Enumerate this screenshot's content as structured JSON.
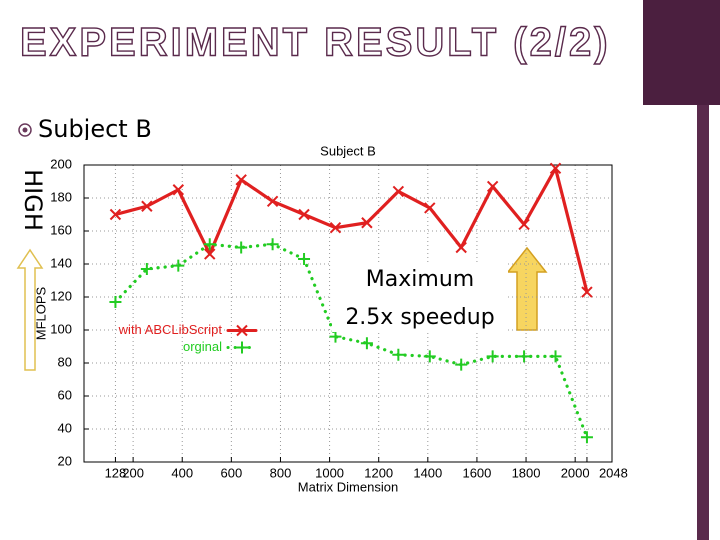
{
  "slide": {
    "title": "EXPERIMENT RESULT (2/2)",
    "bullet": "Subject B",
    "side_label": "HIGH",
    "annotation": [
      "Maximum",
      "2.5x speedup"
    ]
  },
  "chart_data": {
    "type": "line",
    "title": "Subject B",
    "x_label": "Matrix Dimension",
    "y_label": "MFLOPS",
    "x": [
      128,
      256,
      384,
      512,
      640,
      768,
      896,
      1024,
      1152,
      1280,
      1408,
      1536,
      1664,
      1792,
      1920,
      2048
    ],
    "series": [
      {
        "name": "with ABCLibScript",
        "color": "#e02020",
        "marker": "x",
        "style": "solid",
        "values": [
          170,
          175,
          185,
          146,
          191,
          178,
          170,
          162,
          165,
          184,
          174,
          150,
          187,
          164,
          198,
          123
        ]
      },
      {
        "name": "orginal",
        "color": "#22cc22",
        "marker": "+",
        "style": "dotted",
        "values": [
          117,
          137,
          139,
          152,
          150,
          152,
          143,
          96,
          92,
          85,
          84,
          79,
          84,
          84,
          84,
          35
        ]
      }
    ],
    "xlim": [
      0,
      2150
    ],
    "xticks": [
      128,
      200,
      400,
      600,
      800,
      1000,
      1200,
      1400,
      1600,
      1800,
      2000,
      2048
    ],
    "ylim": [
      20,
      200
    ],
    "yticks": [
      20,
      40,
      60,
      80,
      100,
      120,
      140,
      160,
      180,
      200
    ],
    "grid": true,
    "legend": "center left"
  }
}
